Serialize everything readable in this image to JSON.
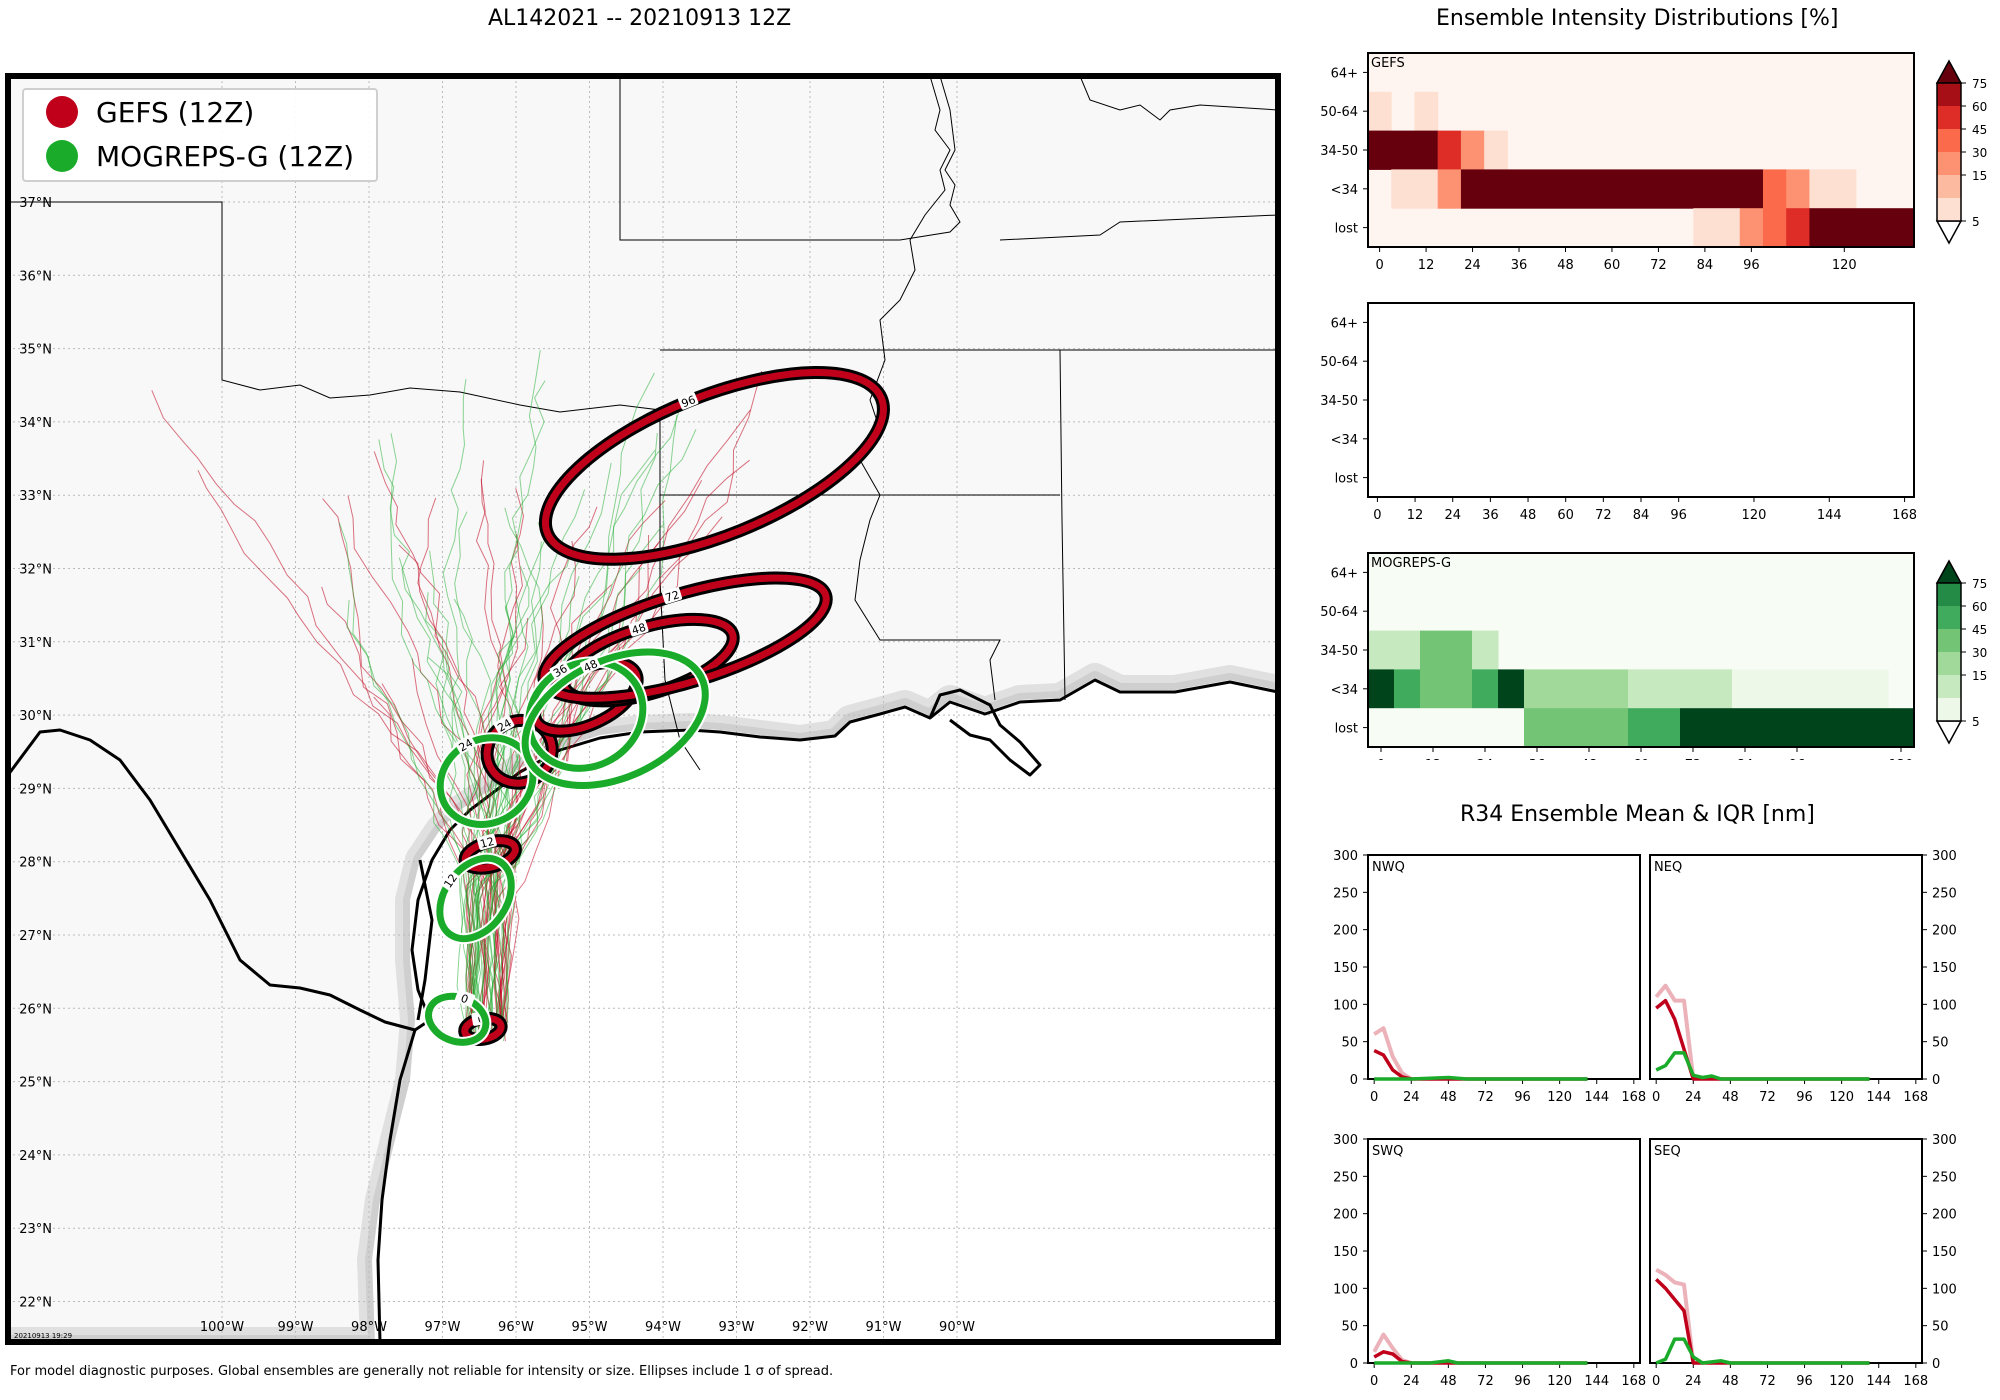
{
  "map": {
    "title": "AL142021 -- 20210913 12Z",
    "timestamp": "20210913 19:29",
    "footnote": "For model diagnostic purposes. Global ensembles are generally not reliable for intensity or size. Ellipses include 1 σ of spread.",
    "lat_labels": [
      "22°N",
      "23°N",
      "24°N",
      "25°N",
      "26°N",
      "27°N",
      "28°N",
      "29°N",
      "30°N",
      "31°N",
      "32°N",
      "33°N",
      "34°N",
      "35°N",
      "36°N",
      "37°N"
    ],
    "lon_labels": [
      "100°W",
      "99°W",
      "98°W",
      "97°W",
      "96°W",
      "95°W",
      "94°W",
      "93°W",
      "92°W",
      "91°W",
      "90°W"
    ],
    "legend": [
      {
        "label": "GEFS (12Z)",
        "color": "#c0001b"
      },
      {
        "label": "MOGREPS-G (12Z)",
        "color": "#1aab2a"
      }
    ],
    "ellipses": [
      {
        "model": "GEFS",
        "hour": "0",
        "lon": -96.45,
        "lat": 25.72,
        "rx_deg": 0.25,
        "ry_deg": 0.14,
        "rot": -10
      },
      {
        "model": "GEFS",
        "hour": "12",
        "lon": -96.35,
        "lat": 28.1,
        "rx_deg": 0.35,
        "ry_deg": 0.17,
        "rot": -15
      },
      {
        "model": "GEFS",
        "hour": "24",
        "lon": -95.95,
        "lat": 29.5,
        "rx_deg": 0.45,
        "ry_deg": 0.42,
        "rot": -30
      },
      {
        "model": "GEFS",
        "hour": "36",
        "lon": -95.05,
        "lat": 30.25,
        "rx_deg": 0.75,
        "ry_deg": 0.38,
        "rot": -25
      },
      {
        "model": "GEFS",
        "hour": "48",
        "lon": -94.2,
        "lat": 30.75,
        "rx_deg": 1.2,
        "ry_deg": 0.45,
        "rot": -17
      },
      {
        "model": "GEFS",
        "hour": "72",
        "lon": -93.7,
        "lat": 31.05,
        "rx_deg": 2.0,
        "ry_deg": 0.6,
        "rot": -17
      },
      {
        "model": "GEFS",
        "hour": "96",
        "lon": -93.3,
        "lat": 33.4,
        "rx_deg": 2.45,
        "ry_deg": 0.95,
        "rot": -22
      },
      {
        "model": "MOGREPS-G",
        "hour": "0",
        "lon": -96.8,
        "lat": 25.85,
        "rx_deg": 0.4,
        "ry_deg": 0.3,
        "rot": 20
      },
      {
        "model": "MOGREPS-G",
        "hour": "12",
        "lon": -96.55,
        "lat": 27.5,
        "rx_deg": 0.6,
        "ry_deg": 0.42,
        "rot": -55
      },
      {
        "model": "MOGREPS-G",
        "hour": "24",
        "lon": -96.4,
        "lat": 29.1,
        "rx_deg": 0.65,
        "ry_deg": 0.57,
        "rot": -30
      },
      {
        "model": "MOGREPS-G",
        "hour": "36",
        "lon": -95.05,
        "lat": 30.0,
        "rx_deg": 0.8,
        "ry_deg": 0.7,
        "rot": -30
      },
      {
        "model": "MOGREPS-G",
        "hour": "48",
        "lon": -94.65,
        "lat": 29.95,
        "rx_deg": 1.3,
        "ry_deg": 0.8,
        "rot": -25
      }
    ]
  },
  "intensity": {
    "title": "Ensemble Intensity Distributions [%]",
    "y_labels": [
      "64+",
      "50-64",
      "34-50",
      "<34",
      "lost"
    ],
    "colorbar_ticks": [
      "75",
      "60",
      "45",
      "30",
      "15",
      "5"
    ],
    "panels": [
      {
        "name": "GEFS",
        "xmax": 138,
        "xticks": [
          0,
          12,
          24,
          36,
          48,
          60,
          72,
          84,
          96,
          120
        ],
        "cells": [
          {
            "row": 1,
            "x0": -3,
            "x1": 3,
            "pct": 12
          },
          {
            "row": 1,
            "x0": 9,
            "x1": 15,
            "pct": 12
          },
          {
            "row": 2,
            "x0": -3,
            "x1": 15,
            "pct": 88
          },
          {
            "row": 2,
            "x0": 15,
            "x1": 21,
            "pct": 65
          },
          {
            "row": 2,
            "x0": 21,
            "x1": 27,
            "pct": 40
          },
          {
            "row": 2,
            "x0": 27,
            "x1": 33,
            "pct": 12
          },
          {
            "row": 3,
            "x0": 3,
            "x1": 15,
            "pct": 12
          },
          {
            "row": 3,
            "x0": 15,
            "x1": 21,
            "pct": 30
          },
          {
            "row": 3,
            "x0": 21,
            "x1": 99,
            "pct": 88
          },
          {
            "row": 3,
            "x0": 99,
            "x1": 105,
            "pct": 55
          },
          {
            "row": 3,
            "x0": 105,
            "x1": 111,
            "pct": 40
          },
          {
            "row": 3,
            "x0": 111,
            "x1": 123,
            "pct": 12
          },
          {
            "row": 4,
            "x0": 81,
            "x1": 93,
            "pct": 12
          },
          {
            "row": 4,
            "x0": 93,
            "x1": 99,
            "pct": 30
          },
          {
            "row": 4,
            "x0": 99,
            "x1": 105,
            "pct": 55
          },
          {
            "row": 4,
            "x0": 105,
            "x1": 111,
            "pct": 70
          },
          {
            "row": 4,
            "x0": 111,
            "x1": 138,
            "pct": 88
          }
        ]
      },
      {
        "name": "",
        "xmax": 171,
        "xticks": [
          0,
          12,
          24,
          36,
          48,
          60,
          72,
          84,
          96,
          120,
          144,
          168
        ],
        "cells": []
      },
      {
        "name": "MOGREPS-G",
        "xmax": 123,
        "xticks": [
          0,
          12,
          24,
          36,
          48,
          60,
          72,
          84,
          96,
          120
        ],
        "cells": [
          {
            "row": 2,
            "x0": -3,
            "x1": 9,
            "pct": 20
          },
          {
            "row": 2,
            "x0": 9,
            "x1": 21,
            "pct": 45
          },
          {
            "row": 2,
            "x0": 21,
            "x1": 27,
            "pct": 20
          },
          {
            "row": 3,
            "x0": -3,
            "x1": 3,
            "pct": 88
          },
          {
            "row": 3,
            "x0": 3,
            "x1": 9,
            "pct": 65
          },
          {
            "row": 3,
            "x0": 9,
            "x1": 21,
            "pct": 45
          },
          {
            "row": 3,
            "x0": 21,
            "x1": 27,
            "pct": 65
          },
          {
            "row": 3,
            "x0": 27,
            "x1": 33,
            "pct": 88
          },
          {
            "row": 3,
            "x0": 33,
            "x1": 57,
            "pct": 30
          },
          {
            "row": 3,
            "x0": 57,
            "x1": 81,
            "pct": 20
          },
          {
            "row": 3,
            "x0": 81,
            "x1": 117,
            "pct": 10
          },
          {
            "row": 4,
            "x0": -3,
            "x1": 33,
            "pct": 3
          },
          {
            "row": 4,
            "x0": 33,
            "x1": 57,
            "pct": 45
          },
          {
            "row": 4,
            "x0": 57,
            "x1": 69,
            "pct": 65
          },
          {
            "row": 4,
            "x0": 69,
            "x1": 123,
            "pct": 88
          }
        ]
      }
    ]
  },
  "r34": {
    "title": "R34 Ensemble Mean & IQR [nm]",
    "y_ticks": [
      0,
      50,
      100,
      150,
      200,
      250,
      300
    ],
    "x_ticks": [
      0,
      24,
      48,
      72,
      96,
      120,
      144,
      168
    ],
    "panels": [
      {
        "name": "NWQ",
        "gefs_mean": [
          [
            0,
            38
          ],
          [
            6,
            32
          ],
          [
            12,
            12
          ],
          [
            18,
            3
          ],
          [
            24,
            0
          ],
          [
            48,
            0
          ],
          [
            72,
            0
          ],
          [
            96,
            0
          ],
          [
            120,
            0
          ],
          [
            138,
            0
          ]
        ],
        "gefs_iqr": [
          [
            0,
            60
          ],
          [
            6,
            68
          ],
          [
            12,
            30
          ],
          [
            18,
            8
          ],
          [
            24,
            0
          ]
        ],
        "mog_mean": [
          [
            0,
            0
          ],
          [
            24,
            0
          ],
          [
            36,
            1
          ],
          [
            48,
            2
          ],
          [
            60,
            0
          ],
          [
            138,
            0
          ]
        ]
      },
      {
        "name": "NEQ",
        "gefs_mean": [
          [
            0,
            95
          ],
          [
            6,
            105
          ],
          [
            12,
            80
          ],
          [
            18,
            40
          ],
          [
            24,
            0
          ],
          [
            48,
            0
          ],
          [
            96,
            0
          ],
          [
            138,
            0
          ]
        ],
        "gefs_iqr": [
          [
            0,
            110
          ],
          [
            6,
            125
          ],
          [
            12,
            105
          ],
          [
            18,
            105
          ],
          [
            24,
            0
          ]
        ],
        "mog_mean": [
          [
            0,
            12
          ],
          [
            6,
            18
          ],
          [
            12,
            35
          ],
          [
            18,
            35
          ],
          [
            24,
            5
          ],
          [
            30,
            2
          ],
          [
            36,
            4
          ],
          [
            42,
            0
          ],
          [
            138,
            0
          ]
        ]
      },
      {
        "name": "SWQ",
        "gefs_mean": [
          [
            0,
            8
          ],
          [
            6,
            15
          ],
          [
            12,
            12
          ],
          [
            18,
            2
          ],
          [
            24,
            0
          ],
          [
            48,
            0
          ],
          [
            96,
            0
          ],
          [
            138,
            0
          ]
        ],
        "gefs_iqr": [
          [
            0,
            15
          ],
          [
            6,
            38
          ],
          [
            12,
            20
          ],
          [
            18,
            4
          ],
          [
            24,
            0
          ]
        ],
        "mog_mean": [
          [
            0,
            0
          ],
          [
            24,
            0
          ],
          [
            36,
            0
          ],
          [
            48,
            3
          ],
          [
            54,
            0
          ],
          [
            138,
            0
          ]
        ]
      },
      {
        "name": "SEQ",
        "gefs_mean": [
          [
            0,
            112
          ],
          [
            6,
            100
          ],
          [
            12,
            85
          ],
          [
            18,
            70
          ],
          [
            24,
            0
          ],
          [
            48,
            0
          ],
          [
            96,
            0
          ],
          [
            138,
            0
          ]
        ],
        "gefs_iqr": [
          [
            0,
            125
          ],
          [
            6,
            118
          ],
          [
            12,
            108
          ],
          [
            18,
            105
          ],
          [
            24,
            0
          ]
        ],
        "mog_mean": [
          [
            0,
            0
          ],
          [
            6,
            5
          ],
          [
            12,
            32
          ],
          [
            18,
            32
          ],
          [
            24,
            8
          ],
          [
            30,
            0
          ],
          [
            42,
            3
          ],
          [
            48,
            0
          ],
          [
            138,
            0
          ]
        ]
      }
    ]
  }
}
